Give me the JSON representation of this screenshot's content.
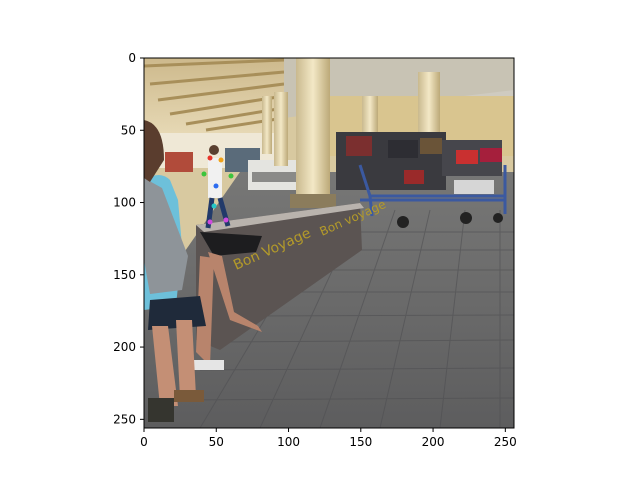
{
  "axes": {
    "x_ticks": [
      "0",
      "50",
      "100",
      "150",
      "200",
      "250"
    ],
    "y_ticks": [
      "0",
      "50",
      "100",
      "150",
      "200",
      "250"
    ],
    "x_range": [
      0,
      256
    ],
    "y_range": [
      256,
      0
    ]
  },
  "image": {
    "scene": "airport baggage claim walkway with people and luggage carts",
    "pose_keypoint_colors": [
      "#e8352a",
      "#f2a218",
      "#3cc43c",
      "#2c6cf0",
      "#d04adf",
      "#26c6c6"
    ]
  }
}
